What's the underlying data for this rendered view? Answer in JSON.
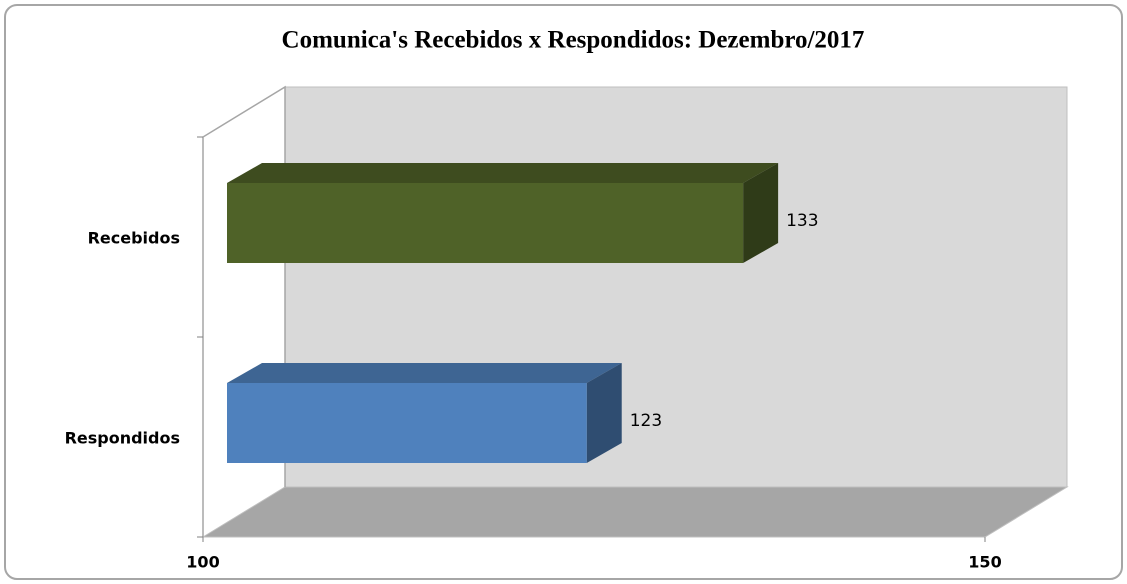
{
  "chart_data": {
    "type": "bar3d_horizontal",
    "title": "Comunica's Recebidos x Respondidos: Dezembro/2017",
    "categories": [
      "Recebidos",
      "Respondidos"
    ],
    "values": [
      133,
      123
    ],
    "colors": [
      "#4f6228",
      "#4f81bd"
    ],
    "xlim": [
      100,
      150
    ],
    "xticks": [
      100,
      150
    ]
  }
}
